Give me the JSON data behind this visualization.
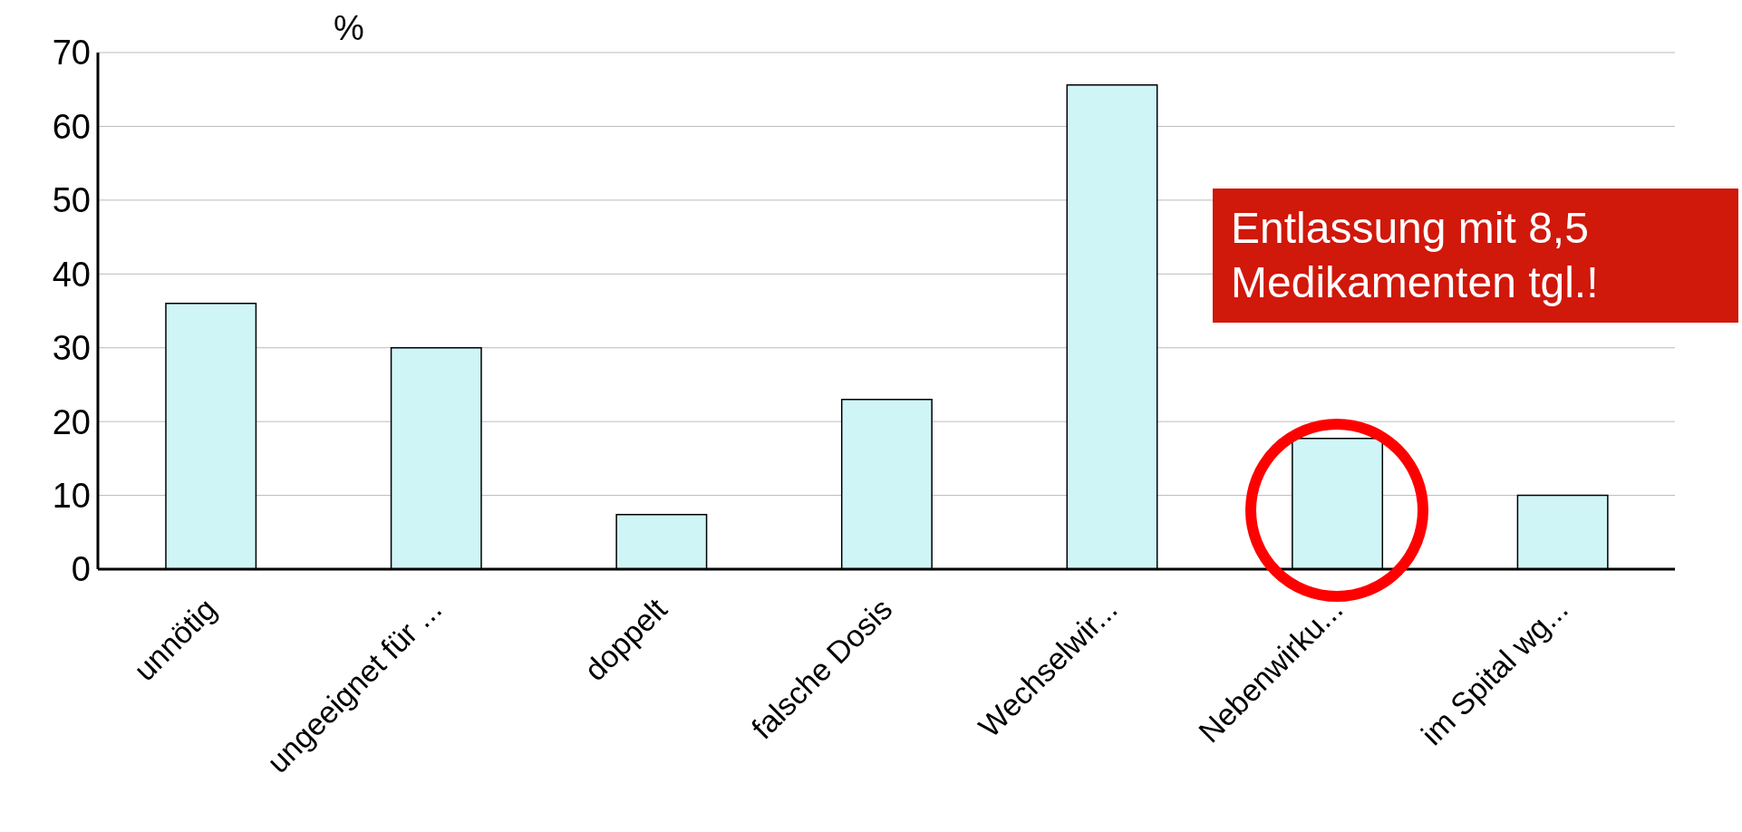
{
  "chart_data": {
    "type": "bar",
    "ylabel": "%",
    "categories": [
      "unnötig",
      "ungeeignet für ...",
      "doppelt",
      "falsche Dosis",
      "Wechselwir...",
      "Nebenwirku...",
      "im Spital wg..."
    ],
    "values": [
      36,
      30,
      7.4,
      23,
      65.6,
      17.7,
      10
    ],
    "color": "#cff5f7",
    "ylim": [
      0,
      70
    ],
    "yticks": [
      0,
      10,
      20,
      30,
      40,
      50,
      60,
      70
    ],
    "grid": "y",
    "annotations": [
      "Entlassung mit 8,5 Medikamenten tgl.!"
    ]
  }
}
